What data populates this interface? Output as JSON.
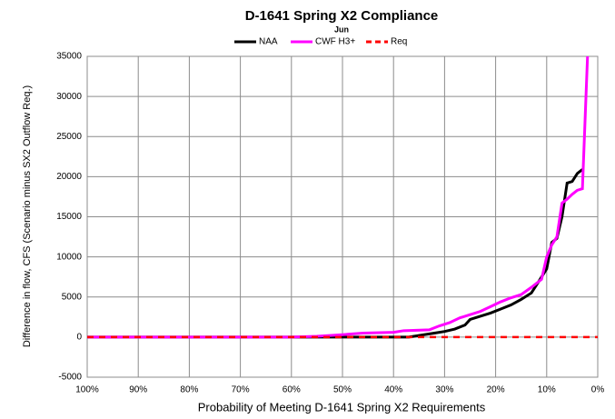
{
  "chart_data": {
    "type": "line",
    "title": "D-1641 Spring X2 Compliance",
    "subtitle": "Jun",
    "x_label": "Probability of Meeting D-1641 Spring X2 Requirements",
    "y_label": "Difference in flow, CFS (Scenario minus SX2 Outflow Req.)",
    "legend": "top",
    "grid": true,
    "xlim": [
      100,
      0
    ],
    "ylim": [
      -5000,
      35000
    ],
    "xticks": [
      {
        "value": 100,
        "label": "100%"
      },
      {
        "value": 90,
        "label": "90%"
      },
      {
        "value": 80,
        "label": "80%"
      },
      {
        "value": 70,
        "label": "70%"
      },
      {
        "value": 60,
        "label": "60%"
      },
      {
        "value": 50,
        "label": "50%"
      },
      {
        "value": 40,
        "label": "40%"
      },
      {
        "value": 30,
        "label": "30%"
      },
      {
        "value": 20,
        "label": "20%"
      },
      {
        "value": 10,
        "label": "10%"
      },
      {
        "value": 0,
        "label": "0%"
      }
    ],
    "yticks": [
      -5000,
      0,
      5000,
      10000,
      15000,
      20000,
      25000,
      30000,
      35000
    ],
    "series": [
      {
        "name": "NAA",
        "color": "#000000",
        "dash": false,
        "x": [
          100,
          37,
          35,
          32,
          30,
          28,
          26,
          25,
          23,
          21,
          19,
          17,
          15,
          13,
          12,
          11,
          10,
          9,
          8,
          7,
          6,
          5,
          4,
          3
        ],
        "values": [
          0,
          0,
          200,
          500,
          700,
          1000,
          1500,
          2200,
          2600,
          3000,
          3500,
          4000,
          4700,
          5500,
          6500,
          7500,
          8500,
          11800,
          12300,
          15000,
          19200,
          19400,
          20400,
          20900
        ]
      },
      {
        "name": "CWF H3+",
        "color": "#ff00ff",
        "dash": false,
        "x": [
          100,
          60,
          55,
          50,
          46,
          40,
          38,
          33,
          31,
          29,
          27,
          25,
          23,
          21,
          19,
          17,
          15,
          13,
          11,
          10,
          9,
          8,
          7,
          6,
          5,
          4,
          3,
          2
        ],
        "values": [
          0,
          0,
          100,
          300,
          500,
          600,
          800,
          900,
          1400,
          1800,
          2400,
          2800,
          3200,
          3800,
          4400,
          4900,
          5300,
          6200,
          7200,
          10000,
          11500,
          12500,
          16700,
          17200,
          17800,
          18300,
          18500,
          35000
        ]
      },
      {
        "name": "Req",
        "color": "#ff0000",
        "dash": true,
        "x": [
          100,
          0
        ],
        "values": [
          0,
          0
        ]
      }
    ]
  }
}
